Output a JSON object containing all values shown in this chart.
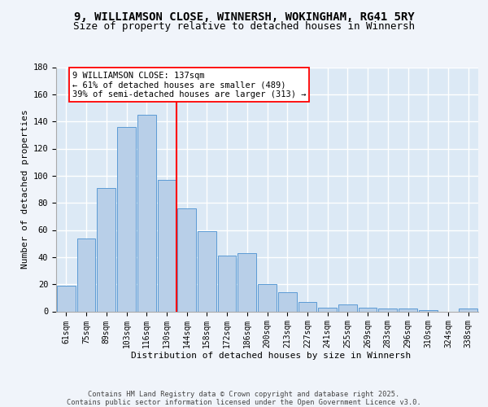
{
  "title_line1": "9, WILLIAMSON CLOSE, WINNERSH, WOKINGHAM, RG41 5RY",
  "title_line2": "Size of property relative to detached houses in Winnersh",
  "xlabel": "Distribution of detached houses by size in Winnersh",
  "ylabel": "Number of detached properties",
  "categories": [
    "61sqm",
    "75sqm",
    "89sqm",
    "103sqm",
    "116sqm",
    "130sqm",
    "144sqm",
    "158sqm",
    "172sqm",
    "186sqm",
    "200sqm",
    "213sqm",
    "227sqm",
    "241sqm",
    "255sqm",
    "269sqm",
    "283sqm",
    "296sqm",
    "310sqm",
    "324sqm",
    "338sqm"
  ],
  "values": [
    19,
    54,
    91,
    136,
    145,
    97,
    76,
    59,
    41,
    43,
    20,
    14,
    7,
    3,
    5,
    3,
    2,
    2,
    1,
    0,
    2
  ],
  "bar_color": "#b8cfe8",
  "bar_edge_color": "#5b9bd5",
  "annotation_line1": "9 WILLIAMSON CLOSE: 137sqm",
  "annotation_line2": "← 61% of detached houses are smaller (489)",
  "annotation_line3": "39% of semi-detached houses are larger (313) →",
  "vline_index": 5.5,
  "ylim_max": 180,
  "yticks": [
    0,
    20,
    40,
    60,
    80,
    100,
    120,
    140,
    160,
    180
  ],
  "plot_bg_color": "#dce9f5",
  "fig_bg_color": "#f0f4fa",
  "grid_color": "#ffffff",
  "footer_text": "Contains HM Land Registry data © Crown copyright and database right 2025.\nContains public sector information licensed under the Open Government Licence v3.0."
}
